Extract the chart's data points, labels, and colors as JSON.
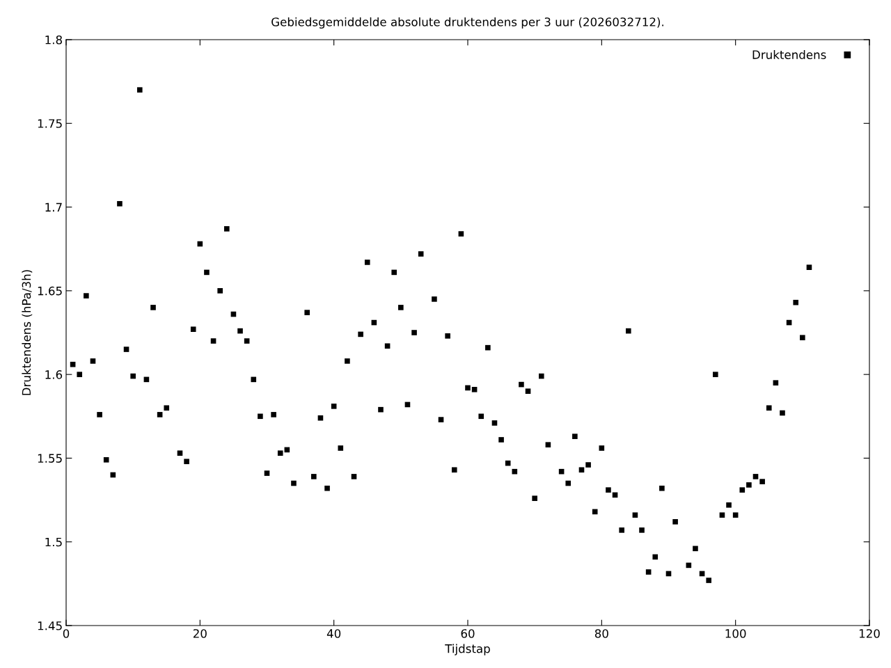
{
  "chart_data": {
    "type": "scatter",
    "title": "Gebiedsgemiddelde absolute druktendens per 3 uur (2026032712).",
    "xlabel": "Tijdstap",
    "ylabel": "Druktendens (hPa/3h)",
    "xlim": [
      0,
      120
    ],
    "xticks": [
      0,
      20,
      40,
      60,
      80,
      100,
      120
    ],
    "ylim": [
      1.45,
      1.8
    ],
    "yticks": [
      1.45,
      1.5,
      1.55,
      1.6,
      1.65,
      1.7,
      1.75,
      1.8
    ],
    "grid": false,
    "legend": "top right",
    "marker": "square",
    "series": [
      {
        "name": "Druktendens",
        "color": "#000000",
        "x": [
          1,
          2,
          3,
          4,
          5,
          6,
          7,
          8,
          9,
          10,
          11,
          12,
          13,
          14,
          15,
          17,
          18,
          19,
          20,
          21,
          22,
          23,
          24,
          25,
          26,
          27,
          28,
          29,
          30,
          31,
          32,
          33,
          34,
          36,
          37,
          38,
          39,
          40,
          41,
          42,
          43,
          44,
          45,
          46,
          47,
          48,
          49,
          50,
          51,
          52,
          53,
          55,
          56,
          57,
          58,
          59,
          60,
          61,
          62,
          63,
          64,
          65,
          66,
          67,
          68,
          69,
          70,
          71,
          72,
          74,
          75,
          76,
          77,
          78,
          79,
          80,
          81,
          82,
          83,
          84,
          85,
          86,
          87,
          88,
          89,
          90,
          91,
          93,
          94,
          95,
          96,
          97,
          98,
          99,
          100,
          101,
          102,
          103,
          104,
          105,
          106,
          107,
          108,
          109,
          110,
          111
        ],
        "values": [
          1.606,
          1.6,
          1.647,
          1.608,
          1.576,
          1.549,
          1.54,
          1.702,
          1.615,
          1.599,
          1.77,
          1.597,
          1.64,
          1.576,
          1.58,
          1.553,
          1.548,
          1.627,
          1.678,
          1.661,
          1.62,
          1.65,
          1.687,
          1.636,
          1.626,
          1.62,
          1.597,
          1.575,
          1.541,
          1.576,
          1.553,
          1.555,
          1.535,
          1.637,
          1.539,
          1.574,
          1.532,
          1.581,
          1.556,
          1.608,
          1.539,
          1.624,
          1.667,
          1.631,
          1.579,
          1.617,
          1.661,
          1.64,
          1.582,
          1.625,
          1.672,
          1.645,
          1.573,
          1.623,
          1.543,
          1.684,
          1.592,
          1.591,
          1.575,
          1.616,
          1.571,
          1.561,
          1.547,
          1.542,
          1.594,
          1.59,
          1.526,
          1.599,
          1.558,
          1.542,
          1.535,
          1.563,
          1.543,
          1.546,
          1.518,
          1.556,
          1.531,
          1.528,
          1.507,
          1.626,
          1.516,
          1.507,
          1.482,
          1.491,
          1.532,
          1.481,
          1.512,
          1.486,
          1.496,
          1.481,
          1.477,
          1.6,
          1.516,
          1.522,
          1.516,
          1.531,
          1.534,
          1.539,
          1.536,
          1.58,
          1.595,
          1.577,
          1.631,
          1.643,
          1.622,
          1.664
        ]
      }
    ]
  }
}
